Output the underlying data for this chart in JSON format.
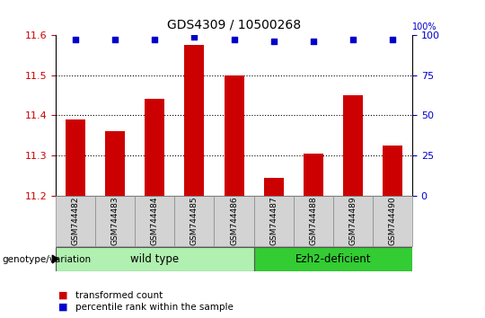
{
  "title": "GDS4309 / 10500268",
  "samples": [
    "GSM744482",
    "GSM744483",
    "GSM744484",
    "GSM744485",
    "GSM744486",
    "GSM744487",
    "GSM744488",
    "GSM744489",
    "GSM744490"
  ],
  "transformed_counts": [
    11.39,
    11.36,
    11.44,
    11.575,
    11.5,
    11.245,
    11.305,
    11.45,
    11.325
  ],
  "percentile_ranks": [
    97,
    97,
    97,
    99,
    97,
    96,
    96,
    97,
    97
  ],
  "ylim_left": [
    11.2,
    11.6
  ],
  "ylim_right": [
    0,
    100
  ],
  "yticks_left": [
    11.2,
    11.3,
    11.4,
    11.5,
    11.6
  ],
  "yticks_right": [
    0,
    25,
    50,
    75,
    100
  ],
  "bar_color": "#cc0000",
  "dot_color": "#0000cc",
  "wt_color": "#b0f0b0",
  "ez_color": "#33cc33",
  "legend_bar_label": "transformed count",
  "legend_dot_label": "percentile rank within the sample",
  "group_label": "genotype/variation",
  "tick_color_left": "#cc0000",
  "tick_color_right": "#0000cc",
  "sample_bg_color": "#d3d3d3",
  "wt_count": 5,
  "ez_count": 4
}
